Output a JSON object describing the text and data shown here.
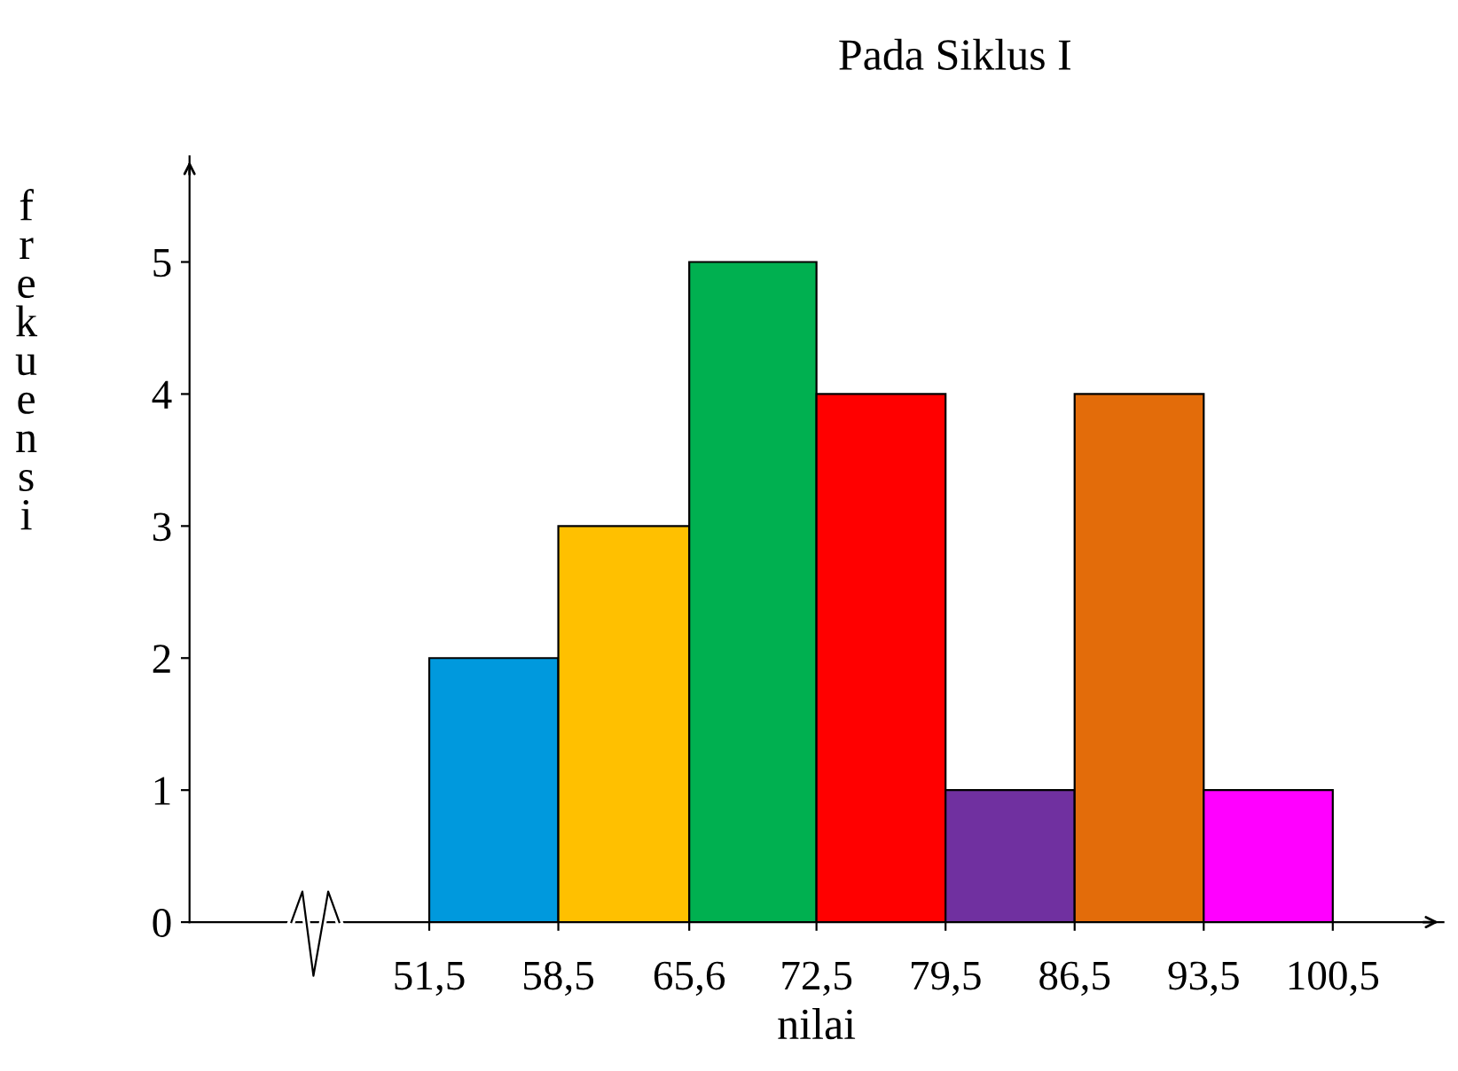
{
  "chart_data": {
    "type": "histogram",
    "title": "Pada Siklus I",
    "xlabel": "nilai",
    "ylabel": "frekuensi",
    "bins": [
      51.5,
      58.5,
      65.6,
      72.5,
      79.5,
      86.5,
      93.5,
      100.5
    ],
    "values": [
      2,
      3,
      5,
      4,
      1,
      4,
      1
    ],
    "colors": [
      "#0099dd",
      "#ffc000",
      "#00b050",
      "#ff0000",
      "#7030a0",
      "#e36c0a",
      "#ff00ff"
    ],
    "xlim": [
      38.5,
      106.5
    ],
    "ylim": [
      0,
      5.8
    ],
    "xticks": [
      {
        "value": 51.5,
        "label": "51,5"
      },
      {
        "value": 58.5,
        "label": "58,5"
      },
      {
        "value": 65.6,
        "label": "65,6"
      },
      {
        "value": 72.5,
        "label": "72,5"
      },
      {
        "value": 79.5,
        "label": "79,5"
      },
      {
        "value": 86.5,
        "label": "86,5"
      },
      {
        "value": 93.5,
        "label": "93,5"
      },
      {
        "value": 100.5,
        "label": "100,5"
      }
    ],
    "yticks": [
      0,
      1,
      2,
      3,
      4,
      5
    ],
    "grid": false,
    "legend": false
  }
}
